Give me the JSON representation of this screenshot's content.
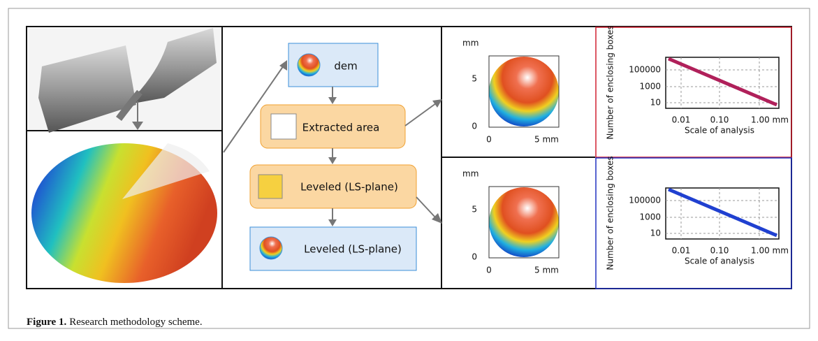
{
  "flowchart": {
    "nodes": [
      {
        "label": "dem"
      },
      {
        "label": "Extracted area"
      },
      {
        "label": "Leveled (LS-plane)"
      },
      {
        "label": "Leveled (LS-plane)"
      }
    ]
  },
  "maps": [
    {
      "y_unit": "mm",
      "yticks": [
        "5",
        "0"
      ],
      "xticks": [
        "0",
        "5 mm"
      ]
    },
    {
      "y_unit": "mm",
      "yticks": [
        "5",
        "0"
      ],
      "xticks": [
        "0",
        "5 mm"
      ]
    }
  ],
  "plots": [
    {
      "y_label": "Number of enclosing boxes",
      "yticks": [
        "100000",
        "1000",
        "10"
      ],
      "xticks": [
        "0.01",
        "0.10",
        "1.00 mm"
      ],
      "x_label": "Scale of analysis"
    },
    {
      "y_label": "Number of enclosing boxes",
      "yticks": [
        "100000",
        "1000",
        "10"
      ],
      "xticks": [
        "0.01",
        "0.10",
        "1.00 mm"
      ],
      "x_label": "Scale of analysis"
    }
  ],
  "caption": {
    "label": "Figure 1.",
    "text": "Research methodology scheme."
  }
}
